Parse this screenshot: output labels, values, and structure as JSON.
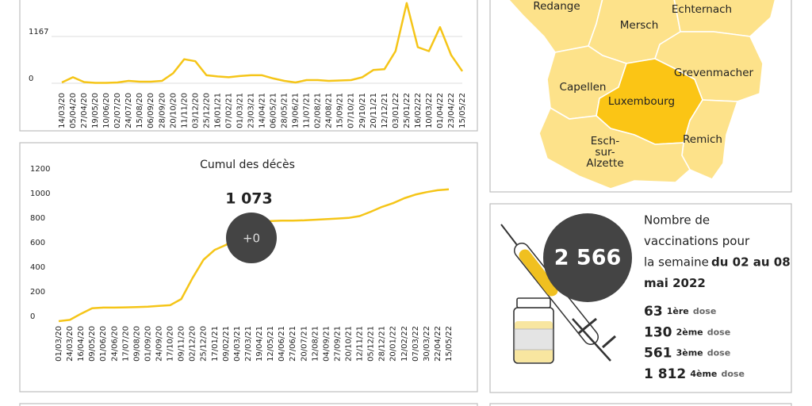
{
  "chart_data": [
    {
      "type": "line",
      "color": "#f5c518",
      "categories": [
        "14/03/20",
        "05/04/20",
        "27/04/20",
        "19/05/20",
        "10/06/20",
        "02/07/20",
        "24/07/20",
        "15/08/20",
        "06/09/20",
        "28/09/20",
        "20/10/20",
        "11/11/20",
        "03/12/20",
        "25/12/20",
        "16/01/21",
        "07/02/21",
        "01/03/21",
        "23/03/21",
        "14/04/21",
        "06/05/21",
        "28/05/21",
        "19/06/21",
        "11/07/21",
        "02/08/21",
        "24/08/21",
        "15/09/21",
        "07/10/21",
        "29/10/21",
        "20/11/21",
        "12/12/21",
        "03/01/22",
        "25/01/22",
        "16/02/22",
        "10/03/22",
        "01/04/22",
        "23/04/22",
        "15/05/22"
      ],
      "values": [
        20,
        150,
        30,
        10,
        10,
        20,
        60,
        40,
        40,
        60,
        250,
        600,
        550,
        200,
        170,
        150,
        180,
        200,
        200,
        120,
        60,
        20,
        80,
        80,
        60,
        70,
        80,
        150,
        330,
        350,
        800,
        2000,
        900,
        800,
        1400,
        700,
        300
      ],
      "ylim": [
        0,
        2100
      ],
      "yticks": [
        0,
        1167
      ],
      "grid": true
    },
    {
      "type": "line",
      "color": "#f5c518",
      "title": "Cumul des décès",
      "categories": [
        "01/03/20",
        "24/03/20",
        "16/04/20",
        "09/05/20",
        "01/06/20",
        "24/06/20",
        "17/07/20",
        "09/08/20",
        "01/09/20",
        "24/09/20",
        "17/10/20",
        "09/11/20",
        "02/12/20",
        "25/12/20",
        "17/01/21",
        "09/02/21",
        "04/03/21",
        "27/03/21",
        "19/04/21",
        "12/05/21",
        "04/06/21",
        "27/06/21",
        "20/07/21",
        "12/08/21",
        "04/09/21",
        "27/09/21",
        "20/10/21",
        "12/11/21",
        "05/12/21",
        "28/12/21",
        "20/01/22",
        "12/02/22",
        "07/03/22",
        "30/03/22",
        "22/04/22",
        "15/05/22"
      ],
      "values": [
        0,
        10,
        60,
        105,
        110,
        110,
        112,
        115,
        118,
        124,
        130,
        180,
        350,
        500,
        580,
        620,
        690,
        760,
        800,
        815,
        818,
        818,
        820,
        825,
        830,
        835,
        840,
        855,
        890,
        930,
        960,
        1000,
        1030,
        1050,
        1065,
        1073
      ],
      "value_labels": [
        null,
        null,
        null,
        null,
        null,
        null,
        null,
        null,
        null,
        null,
        null,
        null,
        null,
        null,
        null,
        null,
        null,
        null,
        null,
        null,
        null,
        null,
        null,
        null,
        null,
        null,
        null,
        null,
        null,
        null,
        null,
        null,
        null,
        null,
        null,
        "1 073"
      ],
      "annotation": "+0",
      "ylim": [
        0,
        1200
      ],
      "yticks": [
        0,
        200,
        400,
        600,
        800,
        1000,
        1200
      ],
      "grid": false
    }
  ],
  "map": {
    "regions": [
      {
        "label": [
          "Redange"
        ]
      },
      {
        "label": [
          "Mersch"
        ]
      },
      {
        "label": [
          "Echternach"
        ]
      },
      {
        "label": [
          "Grevenmacher"
        ]
      },
      {
        "label": [
          "Capellen"
        ]
      },
      {
        "label": [
          "Luxembourg"
        ]
      },
      {
        "label": [
          "Remich"
        ]
      },
      {
        "label": [
          "Esch-",
          "sur-",
          "Alzette"
        ]
      }
    ]
  },
  "vaccination": {
    "total": "2 566",
    "description": [
      "Nombre de",
      "vaccinations pour",
      "la semaine"
    ],
    "period": [
      "du 02 au 08",
      "mai 2022"
    ],
    "doses": [
      {
        "count": "63",
        "ordinal": "1ère",
        "unit": "dose"
      },
      {
        "count": "130",
        "ordinal": "2ème",
        "unit": "dose"
      },
      {
        "count": "561",
        "ordinal": "3ème",
        "unit": "dose"
      },
      {
        "count": "1 812",
        "ordinal": "4ème",
        "unit": "dose"
      }
    ]
  }
}
